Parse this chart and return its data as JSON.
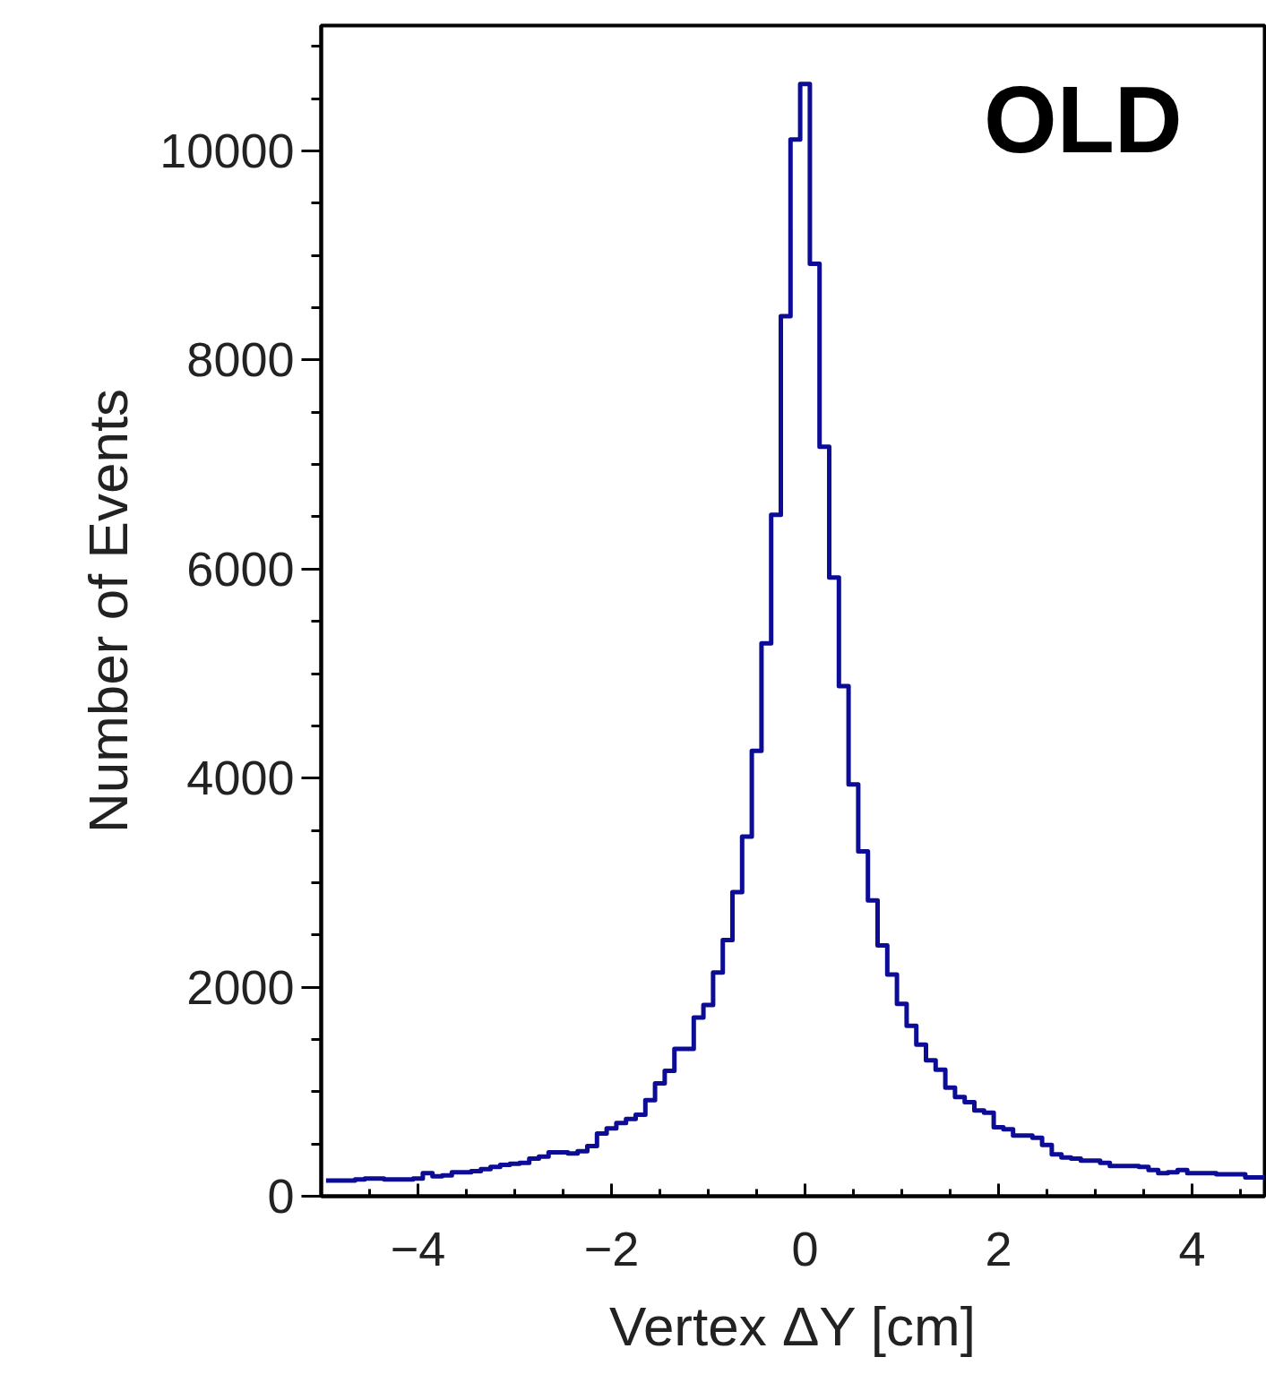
{
  "chart_data": {
    "type": "histogram",
    "xlabel": "Vertex ΔY [cm]",
    "ylabel": "Number of Events",
    "annotations": [
      "OLD"
    ],
    "bins": [
      -4.95,
      -4.85,
      -4.75,
      -4.65,
      -4.55,
      -4.45,
      -4.35,
      -4.25,
      -4.15,
      -4.05,
      -3.95,
      -3.85,
      -3.75,
      -3.65,
      -3.55,
      -3.45,
      -3.35,
      -3.25,
      -3.15,
      -3.05,
      -2.95,
      -2.85,
      -2.75,
      -2.65,
      -2.55,
      -2.45,
      -2.35,
      -2.25,
      -2.15,
      -2.05,
      -1.95,
      -1.85,
      -1.75,
      -1.65,
      -1.55,
      -1.45,
      -1.35,
      -1.25,
      -1.15,
      -1.05,
      -0.95,
      -0.85,
      -0.75,
      -0.65,
      -0.55,
      -0.45,
      -0.35,
      -0.25,
      -0.15,
      -0.05,
      0.05,
      0.15,
      0.25,
      0.35,
      0.45,
      0.55,
      0.65,
      0.75,
      0.85,
      0.95,
      1.05,
      1.15,
      1.25,
      1.35,
      1.45,
      1.55,
      1.65,
      1.75,
      1.85,
      1.95,
      2.05,
      2.15,
      2.25,
      2.35,
      2.45,
      2.55,
      2.65,
      2.75,
      2.85,
      2.95,
      3.05,
      3.15,
      3.25,
      3.35,
      3.45,
      3.55,
      3.65,
      3.75,
      3.85,
      3.95,
      4.05,
      4.15,
      4.25,
      4.35,
      4.45,
      4.55,
      4.65,
      4.75
    ],
    "values": [
      150,
      150,
      150,
      160,
      170,
      170,
      160,
      160,
      160,
      170,
      220,
      190,
      200,
      230,
      230,
      240,
      260,
      280,
      300,
      310,
      320,
      360,
      380,
      420,
      420,
      410,
      430,
      480,
      600,
      650,
      700,
      740,
      780,
      920,
      1080,
      1200,
      1410,
      1410,
      1710,
      1830,
      2140,
      2450,
      2910,
      3440,
      4260,
      5290,
      6520,
      8420,
      10110,
      10640,
      8920,
      7170,
      5920,
      4880,
      3940,
      3300,
      2830,
      2400,
      2120,
      1840,
      1630,
      1450,
      1300,
      1210,
      1040,
      950,
      900,
      820,
      800,
      660,
      640,
      580,
      580,
      560,
      490,
      400,
      370,
      360,
      340,
      340,
      320,
      290,
      290,
      290,
      280,
      250,
      220,
      230,
      250,
      220,
      220,
      220,
      210,
      210,
      210,
      180,
      180
    ],
    "color": "#0c0c96",
    "xlim": [
      -5,
      4.75
    ],
    "ylim": [
      0,
      11200
    ],
    "xticks": [
      {
        "value": -4,
        "label": "−4"
      },
      {
        "value": -2,
        "label": "−2"
      },
      0,
      2,
      4
    ],
    "yticks": [
      0,
      2000,
      4000,
      6000,
      8000,
      10000
    ]
  }
}
